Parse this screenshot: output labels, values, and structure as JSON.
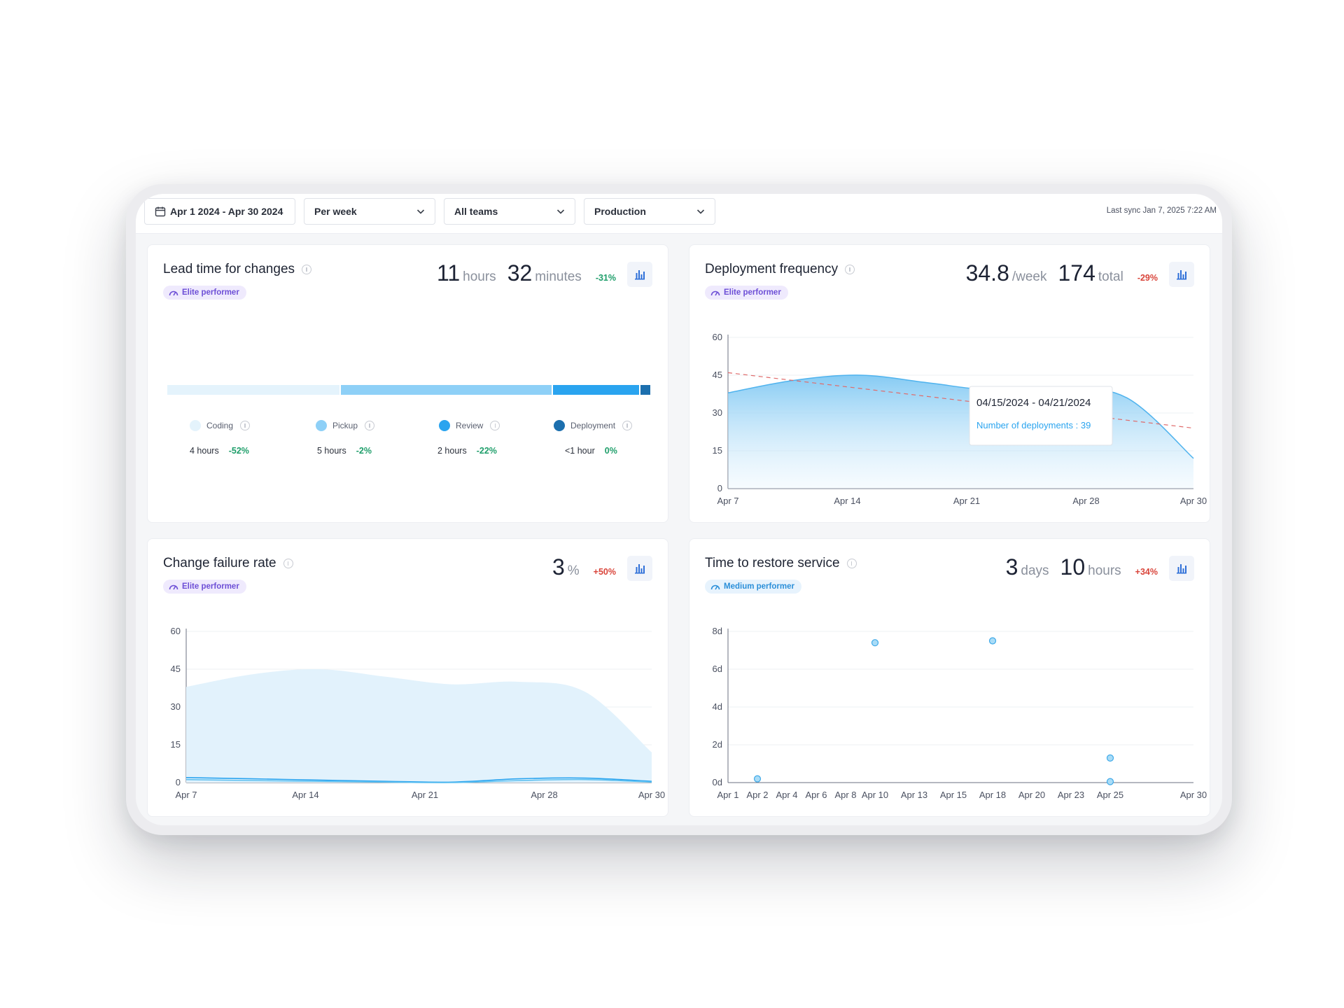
{
  "filters": {
    "date_range": "Apr 1 2024 - Apr 30 2024",
    "interval": "Per week",
    "teams": "All teams",
    "environment": "Production",
    "last_sync": "Last sync Jan 7, 2025 7:22 AM"
  },
  "lead_time": {
    "title": "Lead time for changes",
    "badge": "Elite performer",
    "hours": "11",
    "hours_unit": "hours",
    "minutes": "32",
    "minutes_unit": "minutes",
    "delta": "-31%",
    "bar_fractions": [
      0.36,
      0.44,
      0.18,
      0.02
    ],
    "bar_colors": [
      "#e4f3fc",
      "#8ed0f7",
      "#2aa4ef",
      "#1c6fae"
    ],
    "stages": [
      {
        "label": "Coding",
        "value": "4 hours",
        "delta": "-52%"
      },
      {
        "label": "Pickup",
        "value": "5 hours",
        "delta": "-2%"
      },
      {
        "label": "Review",
        "value": "2 hours",
        "delta": "-22%"
      },
      {
        "label": "Deployment",
        "value": "<1 hour",
        "delta": "0%"
      }
    ]
  },
  "deployment": {
    "title": "Deployment frequency",
    "badge": "Elite performer",
    "per_week": "34.8",
    "per_week_unit": "/week",
    "total": "174",
    "total_unit": "total",
    "delta": "-29%",
    "tooltip": {
      "range": "04/15/2024 - 04/21/2024",
      "label": "Number of deployments : 39"
    }
  },
  "failure": {
    "title": "Change failure rate",
    "badge": "Elite performer",
    "value": "3",
    "unit": "%",
    "delta": "+50%"
  },
  "restore": {
    "title": "Time to restore service",
    "badge": "Medium performer",
    "days": "3",
    "days_unit": "days",
    "hours": "10",
    "hours_unit": "hours",
    "delta": "+34%"
  },
  "chart_data": [
    {
      "type": "area",
      "title": "Deployment frequency",
      "x": [
        "Apr 7",
        "Apr 10",
        "Apr 14",
        "Apr 17",
        "Apr 21",
        "Apr 24",
        "Apr 27",
        "Apr 30"
      ],
      "xticks": [
        "Apr 7",
        "Apr 14",
        "Apr 21",
        "Apr 28",
        "Apr 30"
      ],
      "series": [
        {
          "values": [
            38,
            43,
            45,
            42,
            39,
            40,
            36,
            12
          ]
        }
      ],
      "trend": [
        46,
        24
      ],
      "yticks": [
        0,
        15,
        30,
        45,
        60
      ],
      "ylim": [
        0,
        60
      ]
    },
    {
      "type": "area",
      "title": "Change failure rate",
      "x": [
        "Apr 7",
        "Apr 10",
        "Apr 14",
        "Apr 17",
        "Apr 21",
        "Apr 24",
        "Apr 27",
        "Apr 30"
      ],
      "xticks": [
        "Apr 7",
        "Apr 14",
        "Apr 21",
        "Apr 28",
        "Apr 30"
      ],
      "series": [
        {
          "values": [
            38,
            43,
            45,
            42,
            39,
            40,
            36,
            12
          ]
        },
        {
          "values": [
            2,
            1.5,
            1,
            0.5,
            0.2,
            1.5,
            1.8,
            0.5
          ]
        },
        {
          "values": [
            1.2,
            0.8,
            0.5,
            0.2,
            0,
            0.8,
            1.2,
            0.2
          ]
        }
      ],
      "yticks": [
        0,
        15,
        30,
        45,
        60
      ],
      "ylim": [
        0,
        60
      ]
    },
    {
      "type": "scatter",
      "title": "Time to restore service",
      "xticks": [
        "Apr 1",
        "Apr 2",
        "Apr 4",
        "Apr 6",
        "Apr 8",
        "Apr 10",
        "Apr 13",
        "Apr 15",
        "Apr 18",
        "Apr 20",
        "Apr 23",
        "Apr 25",
        "Apr 30"
      ],
      "points": [
        {
          "x": "Apr 2",
          "y": 0.2
        },
        {
          "x": "Apr 10",
          "y": 7.4
        },
        {
          "x": "Apr 18",
          "y": 7.5
        },
        {
          "x": "Apr 25",
          "y": 1.3
        },
        {
          "x": "Apr 25",
          "y": 0.05
        }
      ],
      "yticks": [
        "0d",
        "2d",
        "4d",
        "6d",
        "8d"
      ],
      "ylim": [
        0,
        8
      ]
    }
  ]
}
